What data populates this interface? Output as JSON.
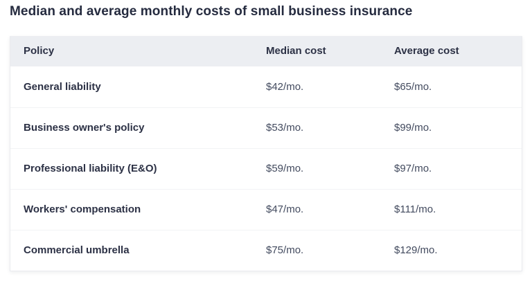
{
  "title": "Median and average monthly costs of small business insurance",
  "table": {
    "columns": [
      {
        "key": "policy",
        "label": "Policy"
      },
      {
        "key": "median",
        "label": "Median cost"
      },
      {
        "key": "average",
        "label": "Average cost"
      }
    ],
    "rows": [
      {
        "policy": "General liability",
        "median": "$42/mo.",
        "average": "$65/mo."
      },
      {
        "policy": "Business owner's policy",
        "median": "$53/mo.",
        "average": "$99/mo."
      },
      {
        "policy": "Professional liability (E&O)",
        "median": "$59/mo.",
        "average": "$97/mo."
      },
      {
        "policy": "Workers' compensation",
        "median": "$47/mo.",
        "average": "$111/mo."
      },
      {
        "policy": "Commercial umbrella",
        "median": "$75/mo.",
        "average": "$129/mo."
      }
    ]
  },
  "chart_data": {
    "type": "table",
    "title": "Median and average monthly costs of small business insurance",
    "columns": [
      "Policy",
      "Median cost",
      "Average cost"
    ],
    "rows": [
      [
        "General liability",
        "$42/mo.",
        "$65/mo."
      ],
      [
        "Business owner's policy",
        "$53/mo.",
        "$99/mo."
      ],
      [
        "Professional liability (E&O)",
        "$59/mo.",
        "$97/mo."
      ],
      [
        "Workers' compensation",
        "$47/mo.",
        "$111/mo."
      ],
      [
        "Commercial umbrella",
        "$75/mo.",
        "$129/mo."
      ]
    ],
    "series": [
      {
        "name": "Median cost ($/mo.)",
        "values": [
          42,
          53,
          59,
          47,
          75
        ]
      },
      {
        "name": "Average cost ($/mo.)",
        "values": [
          65,
          99,
          97,
          111,
          129
        ]
      }
    ],
    "categories": [
      "General liability",
      "Business owner's policy",
      "Professional liability (E&O)",
      "Workers' compensation",
      "Commercial umbrella"
    ]
  },
  "colors": {
    "page_bg": "#ffffff",
    "title_text": "#252b3f",
    "header_bg": "#eceef2",
    "header_text": "#2c3145",
    "policy_text": "#2c3145",
    "value_text": "#424a5e",
    "divider": "#f2f3f5",
    "card_border": "#eaebef"
  }
}
